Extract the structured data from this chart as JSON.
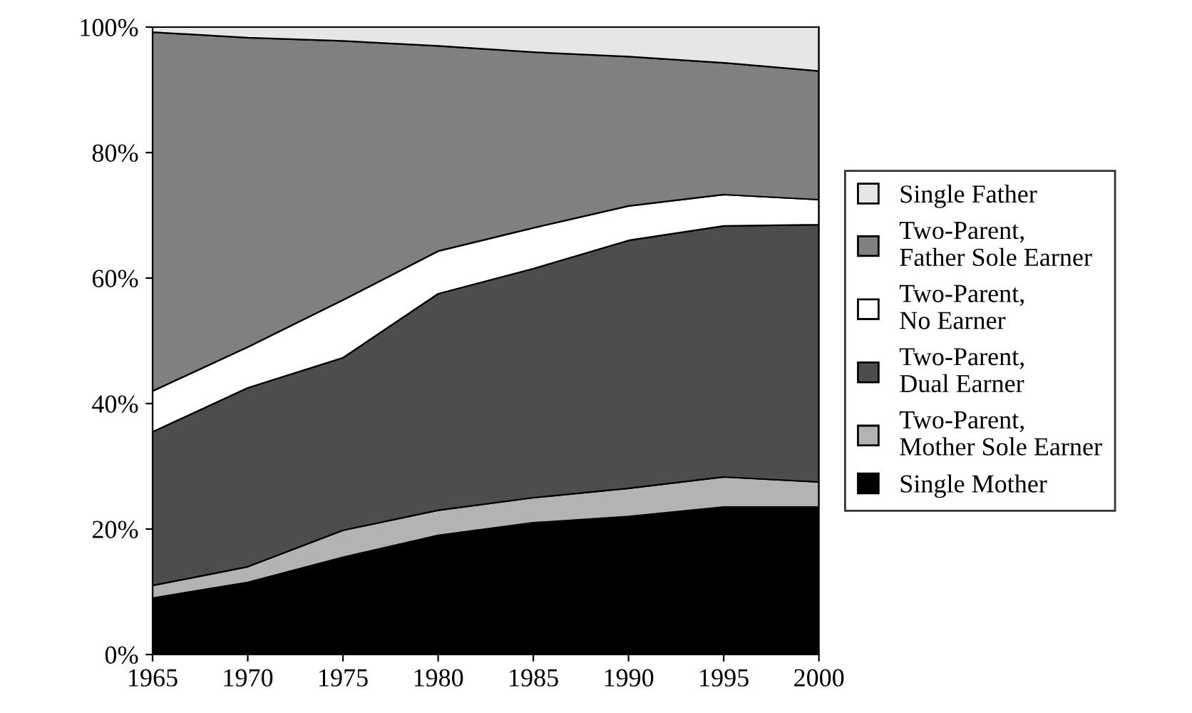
{
  "chart_data": {
    "type": "area",
    "stacked": true,
    "x": [
      1965,
      1970,
      1975,
      1980,
      1985,
      1990,
      1995,
      2000
    ],
    "series": [
      {
        "name": "Single Mother",
        "color": "#000000",
        "values": [
          9,
          11.5,
          15.5,
          19,
          21,
          22,
          23.5,
          23.5
        ]
      },
      {
        "name": "Two-Parent,\nMother Sole Earner",
        "color": "#b3b3b3",
        "values": [
          2,
          2.5,
          4.3,
          4,
          4,
          4.5,
          4.8,
          4
        ]
      },
      {
        "name": "Two-Parent,\nDual Earner",
        "color": "#4d4d4d",
        "values": [
          24.5,
          28.5,
          27.5,
          34.5,
          36.5,
          39.5,
          40,
          41
        ]
      },
      {
        "name": "Two-Parent,\nNo Earner",
        "color": "#ffffff",
        "values": [
          6.5,
          6.5,
          9.2,
          6.8,
          6.5,
          5.5,
          5,
          4
        ]
      },
      {
        "name": "Two-Parent,\nFather Sole Earner",
        "color": "#808080",
        "values": [
          57.2,
          49.3,
          41.3,
          32.7,
          28,
          23.8,
          21,
          20.5
        ]
      },
      {
        "name": "Single Father",
        "color": "#e6e6e6",
        "values": [
          0.8,
          1.7,
          2.2,
          3,
          4,
          4.7,
          5.7,
          7
        ]
      }
    ],
    "xlim": [
      1965,
      2000
    ],
    "xticks": [
      1965,
      1970,
      1975,
      1980,
      1985,
      1990,
      1995,
      2000
    ],
    "ylim": [
      0,
      100
    ],
    "yticks": [
      {
        "value": 0,
        "label": "0%"
      },
      {
        "value": 20,
        "label": "20%"
      },
      {
        "value": 40,
        "label": "40%"
      },
      {
        "value": 60,
        "label": "60%"
      },
      {
        "value": 80,
        "label": "80%"
      },
      {
        "value": 100,
        "label": "100%"
      }
    ],
    "grid": false,
    "legend": "right"
  }
}
